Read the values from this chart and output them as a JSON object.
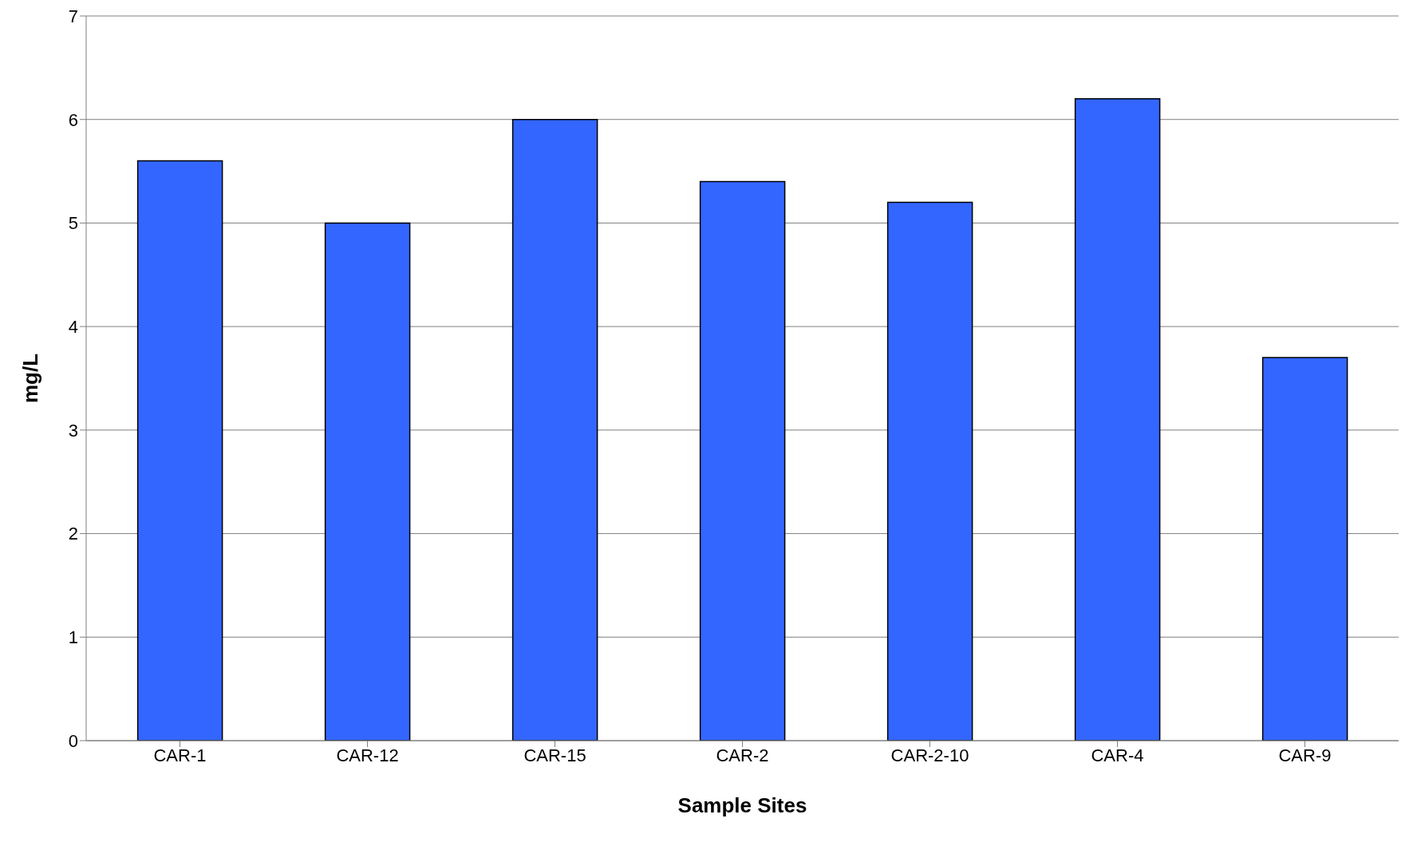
{
  "chart_data": {
    "type": "bar",
    "xlabel": "Sample Sites",
    "ylabel": "mg/L",
    "categories": [
      "CAR-1",
      "CAR-12",
      "CAR-15",
      "CAR-2",
      "CAR-2-10",
      "CAR-4",
      "CAR-9"
    ],
    "values": [
      5.6,
      5.0,
      6.0,
      5.4,
      5.2,
      6.2,
      3.7
    ],
    "color": "#3366ff",
    "ylim": [
      0,
      7
    ],
    "yticks": [
      0,
      1,
      2,
      3,
      4,
      5,
      6,
      7
    ],
    "grid": "y"
  }
}
